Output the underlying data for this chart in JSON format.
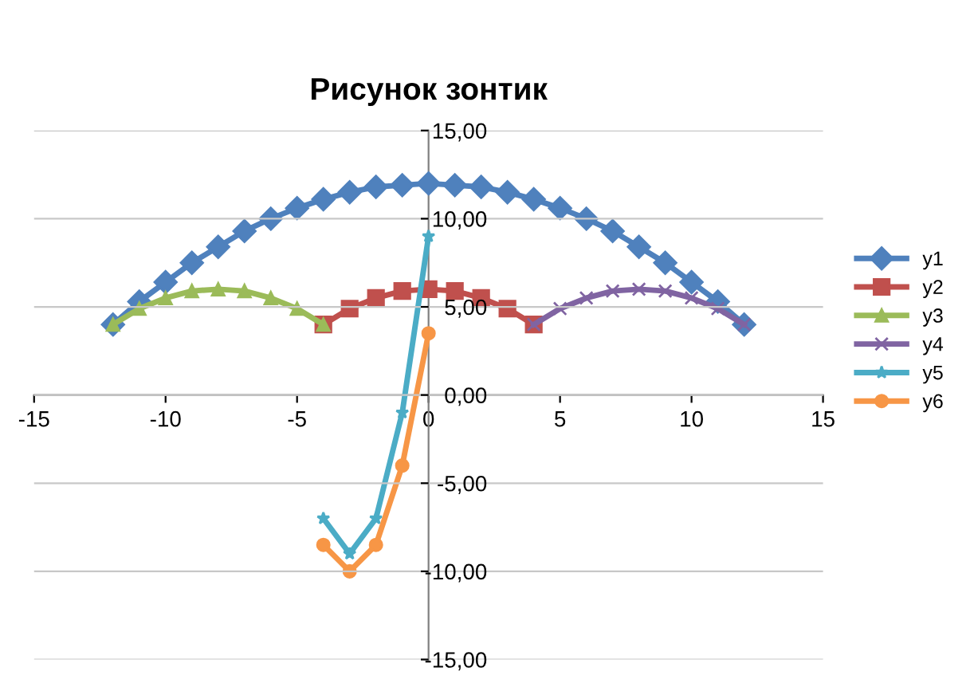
{
  "chart_data": {
    "type": "line",
    "title": "Рисунок зонтик",
    "xlim": [
      -15,
      15
    ],
    "xticks": [
      -15,
      -10,
      -5,
      0,
      5,
      10,
      15
    ],
    "ylim": [
      -15,
      15
    ],
    "yticks": [
      {
        "value": -15,
        "label": "-15,00"
      },
      {
        "value": -10,
        "label": "-10,00"
      },
      {
        "value": -5,
        "label": "-5,00"
      },
      {
        "value": 0,
        "label": "0,00"
      },
      {
        "value": 5,
        "label": "5,00"
      },
      {
        "value": 10,
        "label": "10,00"
      },
      {
        "value": 15,
        "label": "15,00"
      }
    ],
    "grid": "y",
    "legend": "right",
    "series": [
      {
        "name": "y1",
        "color": "#4f81bd",
        "marker": "diamond",
        "x": [
          -12,
          -11,
          -10,
          -9,
          -8,
          -7,
          -6,
          -5,
          -4,
          -3,
          -2,
          -1,
          0,
          1,
          2,
          3,
          4,
          5,
          6,
          7,
          8,
          9,
          10,
          11,
          12
        ],
        "values": [
          4,
          5.3,
          6.4,
          7.5,
          8.4,
          9.3,
          10,
          10.6,
          11.1,
          11.5,
          11.8,
          11.9,
          12,
          11.9,
          11.8,
          11.5,
          11.1,
          10.6,
          10,
          9.3,
          8.4,
          7.5,
          6.4,
          5.3,
          4
        ]
      },
      {
        "name": "y2",
        "color": "#c0504d",
        "marker": "square",
        "x": [
          -4,
          -3,
          -2,
          -1,
          0,
          1,
          2,
          3,
          4
        ],
        "values": [
          4,
          4.9,
          5.5,
          5.9,
          6,
          5.9,
          5.5,
          4.9,
          4
        ]
      },
      {
        "name": "y3",
        "color": "#9bbb59",
        "marker": "triangle",
        "x": [
          -12,
          -11,
          -10,
          -9,
          -8,
          -7,
          -6,
          -5,
          -4
        ],
        "values": [
          4,
          4.9,
          5.5,
          5.9,
          6,
          5.9,
          5.5,
          4.9,
          4
        ]
      },
      {
        "name": "y4",
        "color": "#8064a2",
        "marker": "cross",
        "x": [
          4,
          5,
          6,
          7,
          8,
          9,
          10,
          11,
          12
        ],
        "values": [
          4,
          4.9,
          5.5,
          5.9,
          6,
          5.9,
          5.5,
          4.9,
          4
        ]
      },
      {
        "name": "y5",
        "color": "#4bacc6",
        "marker": "star",
        "x": [
          -4,
          -3,
          -2,
          -1,
          0
        ],
        "values": [
          -7,
          -9,
          -7,
          -1,
          9
        ]
      },
      {
        "name": "y6",
        "color": "#f79646",
        "marker": "circle",
        "x": [
          -4,
          -3,
          -2,
          -1,
          0
        ],
        "values": [
          -8.5,
          -10,
          -8.5,
          -4,
          3.5
        ]
      }
    ]
  }
}
